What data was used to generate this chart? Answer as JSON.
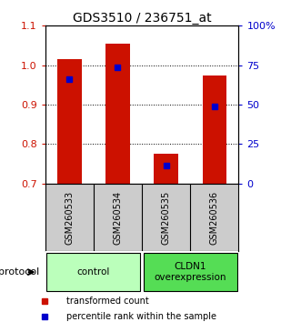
{
  "title": "GDS3510 / 236751_at",
  "samples": [
    "GSM260533",
    "GSM260534",
    "GSM260535",
    "GSM260536"
  ],
  "bar_bottoms": [
    0.7,
    0.7,
    0.7,
    0.7
  ],
  "bar_tops": [
    1.015,
    1.055,
    0.775,
    0.975
  ],
  "percentile_values": [
    0.965,
    0.995,
    0.745,
    0.895
  ],
  "ylim": [
    0.7,
    1.1
  ],
  "yticks_left": [
    0.7,
    0.8,
    0.9,
    1.0,
    1.1
  ],
  "yticks_right_vals": [
    "0",
    "25",
    "50",
    "75",
    "100%"
  ],
  "yticks_right_pos": [
    0.7,
    0.8,
    0.9,
    1.0,
    1.1
  ],
  "bar_color": "#cc1100",
  "percentile_color": "#0000cc",
  "group_labels": [
    "control",
    "CLDN1\noverexpression"
  ],
  "group_colors": [
    "#bbffbb",
    "#55dd55"
  ],
  "group_ranges": [
    [
      0,
      2
    ],
    [
      2,
      4
    ]
  ],
  "protocol_label": "protocol",
  "legend_items": [
    {
      "color": "#cc1100",
      "label": "transformed count"
    },
    {
      "color": "#0000cc",
      "label": "percentile rank within the sample"
    }
  ],
  "bar_width": 0.5,
  "background_color": "#ffffff",
  "tick_label_color_left": "#cc1100",
  "tick_label_color_right": "#0000cc",
  "sample_box_color": "#cccccc",
  "gridline_y": [
    0.8,
    0.9,
    1.0
  ]
}
